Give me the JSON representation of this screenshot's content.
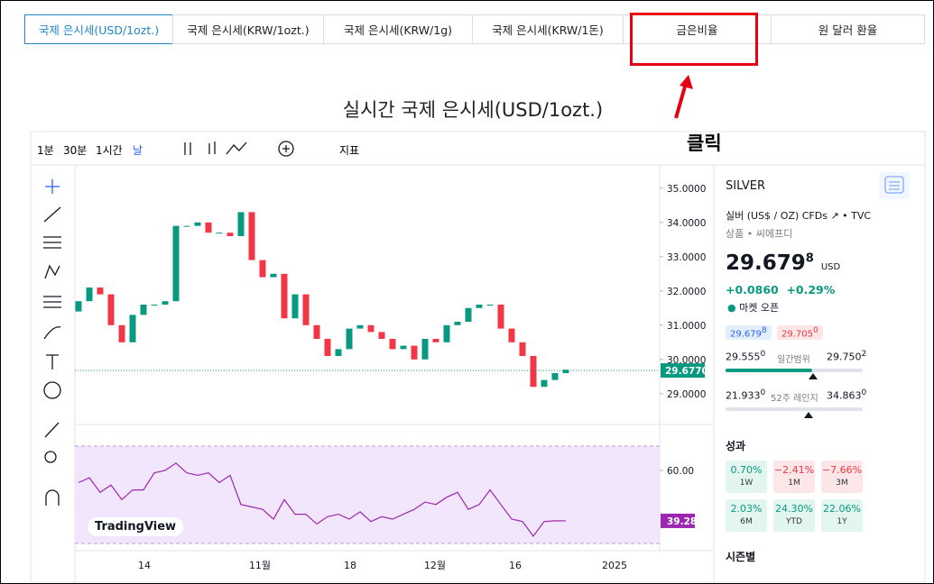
{
  "tabs": [
    "국제 은시세(USD/1ozt.)",
    "국제 은시세(KRW/1ozt.)",
    "국제 은시세(KRW/1g)",
    "국제 은시세(KRW/1돈)",
    "금은비율",
    "원 달러 환율"
  ],
  "annotation": "클릭",
  "chart_data": {
    "type": "candlestick",
    "title": "실시간 국제 은시세(USD/1ozt.)",
    "toolbar": [
      "1분",
      "30분",
      "1시간",
      "날",
      "지표"
    ],
    "open": [
      31.4,
      31.7,
      32.1,
      31.9,
      31.0,
      30.5,
      31.3,
      31.6,
      31.6,
      31.7,
      33.9,
      33.9,
      34.0,
      33.7,
      33.7,
      33.6,
      34.3,
      32.9,
      32.4,
      32.5,
      31.2,
      31.9,
      31.0,
      30.6,
      30.1,
      30.3,
      30.9,
      31.0,
      30.8,
      30.6,
      30.3,
      30.4,
      30.0,
      30.6,
      30.5,
      31.0,
      31.1,
      31.5,
      31.6,
      31.6,
      30.9,
      30.5,
      30.1,
      29.2,
      29.4,
      29.6
    ],
    "close": [
      31.7,
      32.1,
      31.9,
      31.0,
      30.5,
      31.3,
      31.6,
      31.6,
      31.7,
      33.9,
      33.9,
      34.0,
      33.7,
      33.7,
      33.6,
      34.3,
      32.9,
      32.4,
      32.5,
      31.2,
      31.9,
      31.0,
      30.6,
      30.1,
      30.3,
      30.9,
      31.0,
      30.8,
      30.6,
      30.3,
      30.4,
      30.0,
      30.6,
      30.5,
      31.0,
      31.1,
      31.5,
      31.6,
      31.6,
      30.9,
      30.5,
      30.1,
      29.2,
      29.4,
      29.6,
      29.7
    ],
    "up_color": "#089981",
    "down_color": "#f23645",
    "ylim": [
      28.1,
      35.6
    ],
    "yticks": [
      {
        "value": 35,
        "label": "35.0000"
      },
      {
        "value": 34,
        "label": "34.0000"
      },
      {
        "value": 33,
        "label": "33.0000"
      },
      {
        "value": 32,
        "label": "32.0000"
      },
      {
        "value": 31,
        "label": "31.0000"
      },
      {
        "value": 30,
        "label": "30.0000"
      },
      {
        "value": 29,
        "label": "29.0000"
      }
    ],
    "last_price": {
      "value": 29.677,
      "label": "29.6770"
    },
    "x_labels": [
      "14",
      "11월",
      "18",
      "12월",
      "16",
      "2025"
    ],
    "rsi": {
      "values": [
        55,
        57,
        51,
        54,
        48,
        52,
        52,
        59,
        60,
        63,
        59,
        58,
        59,
        55,
        58,
        46,
        45,
        44,
        40,
        48,
        42,
        42,
        38,
        41,
        42,
        40,
        43,
        39,
        41,
        40,
        42,
        44,
        47,
        46,
        49,
        51,
        44,
        46,
        52,
        46,
        40,
        39,
        33,
        39,
        39.3,
        39.28
      ],
      "ylim": [
        30,
        70
      ],
      "yticks": [
        {
          "value": 60,
          "label": "60.00"
        }
      ],
      "last": {
        "value": 39.28,
        "label": "39.28"
      },
      "color": "#9c27b0"
    },
    "watermark": "TradingView"
  },
  "panel": {
    "symbol": "SILVER",
    "description": "실버 (US$ / OZ) CFDs",
    "source": "TVC",
    "category": "상품 • 씨에프디",
    "price": "29.679",
    "price_sup": "8",
    "currency": "USD",
    "change": "+0.0860",
    "change_pct": "+0.29%",
    "status": "마켓 오픈",
    "bid": "29.679",
    "bid_sup": "8",
    "ask": "29.705",
    "ask_sup": "0",
    "day_low": "29.555",
    "day_low_sup": "0",
    "day_label": "일간범위",
    "day_high": "29.750",
    "day_high_sup": "2",
    "year_low": "21.933",
    "year_low_sup": "0",
    "year_label": "52주 레인지",
    "year_high": "34.863",
    "year_high_sup": "0",
    "perf_title": "성과",
    "perf": [
      {
        "value": "0.70%",
        "period": "1W"
      },
      {
        "value": "−2.41%",
        "period": "1M"
      },
      {
        "value": "−7.66%",
        "period": "3M"
      },
      {
        "value": "2.03%",
        "period": "6M"
      },
      {
        "value": "24.30%",
        "period": "YTD"
      },
      {
        "value": "22.06%",
        "period": "1Y"
      }
    ],
    "seasonal": "시즌별"
  }
}
